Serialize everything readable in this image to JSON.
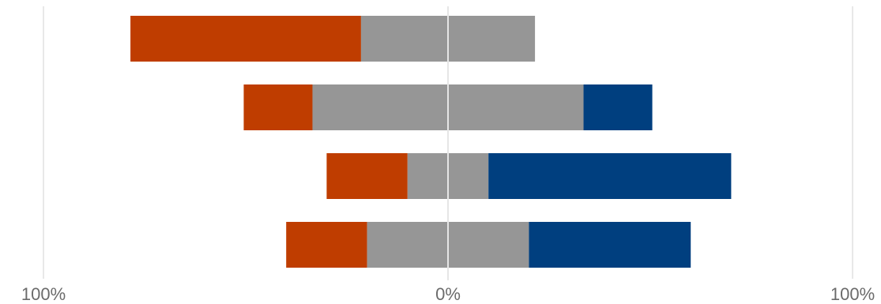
{
  "chart_data": {
    "type": "bar",
    "orientation": "horizontal",
    "stacked": true,
    "diverging": true,
    "title": "",
    "xlabel": "",
    "ylabel": "",
    "xlim": [
      -100,
      100
    ],
    "x_ticks": [
      {
        "value": -100,
        "label": "100%"
      },
      {
        "value": 0,
        "label": "0%"
      },
      {
        "value": 100,
        "label": "100%"
      }
    ],
    "grid": true,
    "legend": "none",
    "categories": [
      "",
      "",
      "",
      ""
    ],
    "series": [
      {
        "color": "#bf3d00",
        "values": [
          57,
          17,
          20,
          20
        ]
      },
      {
        "color": "#969696",
        "values": [
          43,
          67,
          20,
          40
        ]
      },
      {
        "color": "#003f7f",
        "values": [
          0,
          17,
          60,
          40
        ]
      }
    ],
    "neutral_series_index": 1
  }
}
